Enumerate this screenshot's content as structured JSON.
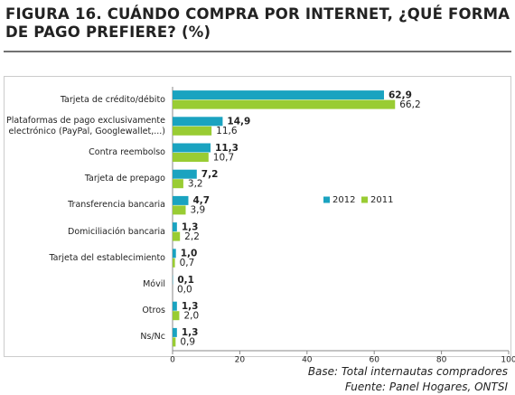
{
  "chart_data": {
    "type": "hbar",
    "title": "FIGURA 16. CUÁNDO COMPRA POR INTERNET, ¿QUÉ FORMA DE PAGO PREFIERE? (%)",
    "categories": [
      "Tarjeta de crédito/débito",
      "Plataformas de pago exclusivamente electrónico (PayPal, Googlewallet,...)",
      "Contra reembolso",
      "Tarjeta de prepago",
      "Transferencia bancaria",
      "Domiciliación bancaria",
      "Tarjeta del establecimiento",
      "Móvil",
      "Otros",
      "Ns/Nc"
    ],
    "series": [
      {
        "name": "2012",
        "color": "#1aa3c0",
        "values": [
          62.9,
          14.9,
          11.3,
          7.2,
          4.7,
          1.3,
          1.0,
          0.1,
          1.3,
          1.3
        ],
        "value_labels": [
          "62,9",
          "14,9",
          "11,3",
          "7,2",
          "4,7",
          "1,3",
          "1,0",
          "0,1",
          "1,3",
          "1,3"
        ]
      },
      {
        "name": "2011",
        "color": "#99cc33",
        "values": [
          66.2,
          11.6,
          10.7,
          3.2,
          3.9,
          2.2,
          0.7,
          0.0,
          2.0,
          0.9
        ],
        "value_labels": [
          "66,2",
          "11,6",
          "10,7",
          "3,2",
          "3,9",
          "2,2",
          "0,7",
          "0,0",
          "2,0",
          "0,9"
        ]
      }
    ],
    "xlim": [
      0,
      100
    ],
    "xticks": [
      0,
      20,
      40,
      60,
      80,
      100
    ],
    "notes": [
      "Base: Total internautas compradores",
      "Fuente: Panel Hogares, ONTSI"
    ]
  }
}
